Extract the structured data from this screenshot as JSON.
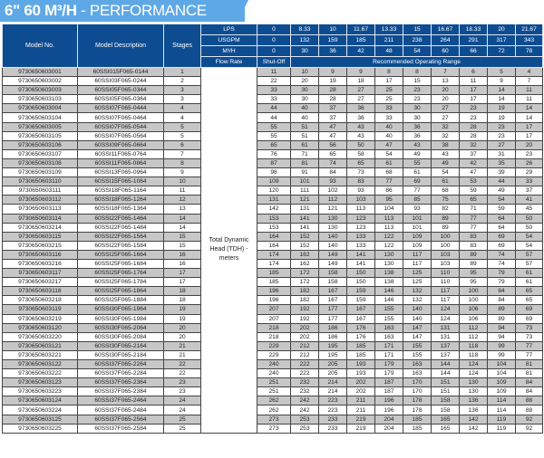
{
  "title": {
    "bold": "6\" 60 M³/H",
    "rest": " - PERFORMANCE"
  },
  "colors": {
    "header_bg": "#0e4c92",
    "banner_bg": "#5ea8e6",
    "row_alt": "#c7c7c7"
  },
  "header": {
    "model_no": "Model No.",
    "model_desc": "Model Description",
    "stages": "Stages",
    "lps_label": "LPS",
    "usgpm_label": "USGPM",
    "m3h_label": "M³/H",
    "flow_rate_label": "Flow Rate",
    "shutoff_label": "Shut-Off",
    "range_label": "Recommended Operating Range",
    "lps": [
      "0",
      "8.33",
      "10",
      "11.67",
      "13.33",
      "15",
      "16.67",
      "18.33",
      "20",
      "21.67"
    ],
    "usgpm": [
      "0",
      "132",
      "159",
      "185",
      "211",
      "238",
      "264",
      "291",
      "317",
      "343"
    ],
    "m3h": [
      "0",
      "30",
      "36",
      "42",
      "48",
      "54",
      "60",
      "66",
      "72",
      "78"
    ]
  },
  "tdh_label": "Total Dynamic Head (TDH) - meters",
  "rows": [
    {
      "model": "9730650603001",
      "desc": "60SSI015F065-0144",
      "stages": "1",
      "v": [
        "11",
        "10",
        "9",
        "9",
        "8",
        "8",
        "7",
        "6",
        "5",
        "4"
      ]
    },
    {
      "model": "9730650603002",
      "desc": "60SSI03F065-0244",
      "stages": "2",
      "v": [
        "22",
        "20",
        "19",
        "18",
        "17",
        "15",
        "13",
        "11",
        "9",
        "7"
      ]
    },
    {
      "model": "9730650603003",
      "desc": "60SSI05F065-0344",
      "stages": "3",
      "v": [
        "33",
        "30",
        "28",
        "27",
        "25",
        "23",
        "20",
        "17",
        "14",
        "11"
      ]
    },
    {
      "model": "9730650603103",
      "desc": "60SSI05F065-0364",
      "stages": "3",
      "v": [
        "33",
        "30",
        "28",
        "27",
        "25",
        "23",
        "20",
        "17",
        "14",
        "11"
      ]
    },
    {
      "model": "9730650603004",
      "desc": "60SSI07F065-0444",
      "stages": "4",
      "v": [
        "44",
        "40",
        "37",
        "36",
        "33",
        "30",
        "27",
        "23",
        "19",
        "14"
      ]
    },
    {
      "model": "9730650603104",
      "desc": "60SSI07F065-0464",
      "stages": "4",
      "v": [
        "44",
        "40",
        "37",
        "36",
        "33",
        "30",
        "27",
        "23",
        "19",
        "14"
      ]
    },
    {
      "model": "9730650603005",
      "desc": "60SSI07F065-0544",
      "stages": "5",
      "v": [
        "55",
        "51",
        "47",
        "43",
        "40",
        "36",
        "32",
        "28",
        "23",
        "17"
      ]
    },
    {
      "model": "9730650603105",
      "desc": "60SSI07F065-0564",
      "stages": "5",
      "v": [
        "55",
        "51",
        "47",
        "43",
        "40",
        "36",
        "32",
        "28",
        "23",
        "17"
      ]
    },
    {
      "model": "9730650603106",
      "desc": "60SSI09F065-0664",
      "stages": "6",
      "v": [
        "65",
        "61",
        "56",
        "50",
        "47",
        "43",
        "38",
        "32",
        "27",
        "20"
      ]
    },
    {
      "model": "9730650603107",
      "desc": "60SSI11F065-0764",
      "stages": "7",
      "v": [
        "76",
        "71",
        "65",
        "58",
        "54",
        "49",
        "43",
        "37",
        "31",
        "23"
      ]
    },
    {
      "model": "9730650603108",
      "desc": "60SSI11F065-0864",
      "stages": "8",
      "v": [
        "87",
        "81",
        "74",
        "65",
        "61",
        "55",
        "49",
        "42",
        "35",
        "26"
      ]
    },
    {
      "model": "9730650603109",
      "desc": "60SSI13F065-0964",
      "stages": "9",
      "v": [
        "98",
        "91",
        "84",
        "73",
        "68",
        "61",
        "54",
        "47",
        "39",
        "29"
      ]
    },
    {
      "model": "9730650603110",
      "desc": "60SSI15F065-1064",
      "stages": "10",
      "v": [
        "109",
        "101",
        "93",
        "83",
        "77",
        "69",
        "61",
        "53",
        "44",
        "33"
      ]
    },
    {
      "model": "9730650603111",
      "desc": "60SSI18F065-1164",
      "stages": "11",
      "v": [
        "120",
        "111",
        "102",
        "93",
        "86",
        "77",
        "68",
        "59",
        "49",
        "37"
      ]
    },
    {
      "model": "9730650603112",
      "desc": "60SSI18F065-1264",
      "stages": "12",
      "v": [
        "131",
        "121",
        "112",
        "103",
        "95",
        "85",
        "75",
        "65",
        "54",
        "41"
      ]
    },
    {
      "model": "9730650603113",
      "desc": "60SSI18F065-1364",
      "stages": "13",
      "v": [
        "142",
        "131",
        "121",
        "113",
        "104",
        "93",
        "82",
        "71",
        "59",
        "45"
      ]
    },
    {
      "model": "9730650603114",
      "desc": "60SSI22F065-1464",
      "stages": "14",
      "v": [
        "153",
        "141",
        "130",
        "123",
        "113",
        "101",
        "89",
        "77",
        "64",
        "50"
      ]
    },
    {
      "model": "9730650603214",
      "desc": "60SSI22F065-1484",
      "stages": "14",
      "v": [
        "153",
        "141",
        "130",
        "123",
        "113",
        "101",
        "89",
        "77",
        "64",
        "50"
      ]
    },
    {
      "model": "9730650603115",
      "desc": "60SSI22F065-1564",
      "stages": "15",
      "v": [
        "164",
        "152",
        "140",
        "133",
        "122",
        "109",
        "100",
        "83",
        "69",
        "54"
      ]
    },
    {
      "model": "9730650603215",
      "desc": "60SSI22F065-1584",
      "stages": "15",
      "v": [
        "164",
        "152",
        "140",
        "133",
        "122",
        "109",
        "100",
        "83",
        "69",
        "54"
      ]
    },
    {
      "model": "9730650603116",
      "desc": "60SSI25F065-1664",
      "stages": "16",
      "v": [
        "174",
        "162",
        "149",
        "141",
        "130",
        "117",
        "103",
        "89",
        "74",
        "57"
      ]
    },
    {
      "model": "9730650603216",
      "desc": "60SSI25F065-1684",
      "stages": "16",
      "v": [
        "174",
        "162",
        "149",
        "141",
        "130",
        "117",
        "103",
        "89",
        "74",
        "57"
      ]
    },
    {
      "model": "9730650603117",
      "desc": "60SSI25F065-1764",
      "stages": "17",
      "v": [
        "185",
        "172",
        "158",
        "150",
        "138",
        "125",
        "110",
        "95",
        "79",
        "61"
      ]
    },
    {
      "model": "9730650603217",
      "desc": "60SSI25F065-1784",
      "stages": "17",
      "v": [
        "185",
        "172",
        "158",
        "150",
        "138",
        "125",
        "110",
        "95",
        "79",
        "61"
      ]
    },
    {
      "model": "9730650603118",
      "desc": "60SSI25F065-1864",
      "stages": "18",
      "v": [
        "196",
        "182",
        "167",
        "159",
        "146",
        "132",
        "117",
        "100",
        "84",
        "65"
      ]
    },
    {
      "model": "9730650603218",
      "desc": "60SSI25F065-1884",
      "stages": "18",
      "v": [
        "196",
        "182",
        "167",
        "159",
        "146",
        "132",
        "117",
        "100",
        "84",
        "65"
      ]
    },
    {
      "model": "9730650603119",
      "desc": "60SSI30F065-1964",
      "stages": "19",
      "v": [
        "207",
        "192",
        "177",
        "167",
        "155",
        "140",
        "124",
        "106",
        "89",
        "69"
      ]
    },
    {
      "model": "9730650603219",
      "desc": "60SSI30F065-1984",
      "stages": "19",
      "v": [
        "207",
        "192",
        "177",
        "167",
        "155",
        "140",
        "124",
        "106",
        "89",
        "69"
      ]
    },
    {
      "model": "9730650603120",
      "desc": "60SSI30F065-2064",
      "stages": "20",
      "v": [
        "218",
        "202",
        "186",
        "176",
        "163",
        "147",
        "131",
        "112",
        "94",
        "73"
      ]
    },
    {
      "model": "9730650603220",
      "desc": "60SSI30F065-2084",
      "stages": "20",
      "v": [
        "218",
        "202",
        "186",
        "176",
        "163",
        "147",
        "131",
        "112",
        "94",
        "73"
      ]
    },
    {
      "model": "9730650603121",
      "desc": "60SSI30F065-2164",
      "stages": "21",
      "v": [
        "229",
        "212",
        "195",
        "185",
        "171",
        "155",
        "137",
        "118",
        "99",
        "77"
      ]
    },
    {
      "model": "9730650603221",
      "desc": "60SSI30F065-2184",
      "stages": "21",
      "v": [
        "229",
        "212",
        "195",
        "185",
        "171",
        "155",
        "137",
        "118",
        "99",
        "77"
      ]
    },
    {
      "model": "9730650603122",
      "desc": "60SSI37F065-2264",
      "stages": "22",
      "v": [
        "240",
        "222",
        "205",
        "193",
        "179",
        "163",
        "144",
        "124",
        "104",
        "81"
      ]
    },
    {
      "model": "9730650603222",
      "desc": "60SSI37F065-2284",
      "stages": "22",
      "v": [
        "240",
        "222",
        "205",
        "193",
        "179",
        "163",
        "144",
        "124",
        "104",
        "81"
      ]
    },
    {
      "model": "9730650603123",
      "desc": "60SSI37F065-2364",
      "stages": "23",
      "v": [
        "251",
        "232",
        "214",
        "202",
        "187",
        "170",
        "151",
        "130",
        "109",
        "84"
      ]
    },
    {
      "model": "9730650603223",
      "desc": "60SSI37F065-2384",
      "stages": "23",
      "v": [
        "251",
        "232",
        "214",
        "202",
        "187",
        "170",
        "151",
        "130",
        "109",
        "84"
      ]
    },
    {
      "model": "9730650603124",
      "desc": "60SSI37F065-2464",
      "stages": "24",
      "v": [
        "262",
        "242",
        "223",
        "211",
        "196",
        "178",
        "158",
        "136",
        "114",
        "88"
      ]
    },
    {
      "model": "9730650603224",
      "desc": "60SSI37F065-2484",
      "stages": "24",
      "v": [
        "262",
        "242",
        "223",
        "211",
        "196",
        "178",
        "158",
        "136",
        "114",
        "88"
      ]
    },
    {
      "model": "9730650603125",
      "desc": "60SSI37F065-2564",
      "stages": "25",
      "v": [
        "273",
        "253",
        "233",
        "219",
        "204",
        "185",
        "165",
        "142",
        "119",
        "92"
      ]
    },
    {
      "model": "9730650603225",
      "desc": "60SSI37F065-2584",
      "stages": "25",
      "v": [
        "273",
        "253",
        "233",
        "219",
        "204",
        "185",
        "165",
        "142",
        "119",
        "92"
      ]
    }
  ]
}
